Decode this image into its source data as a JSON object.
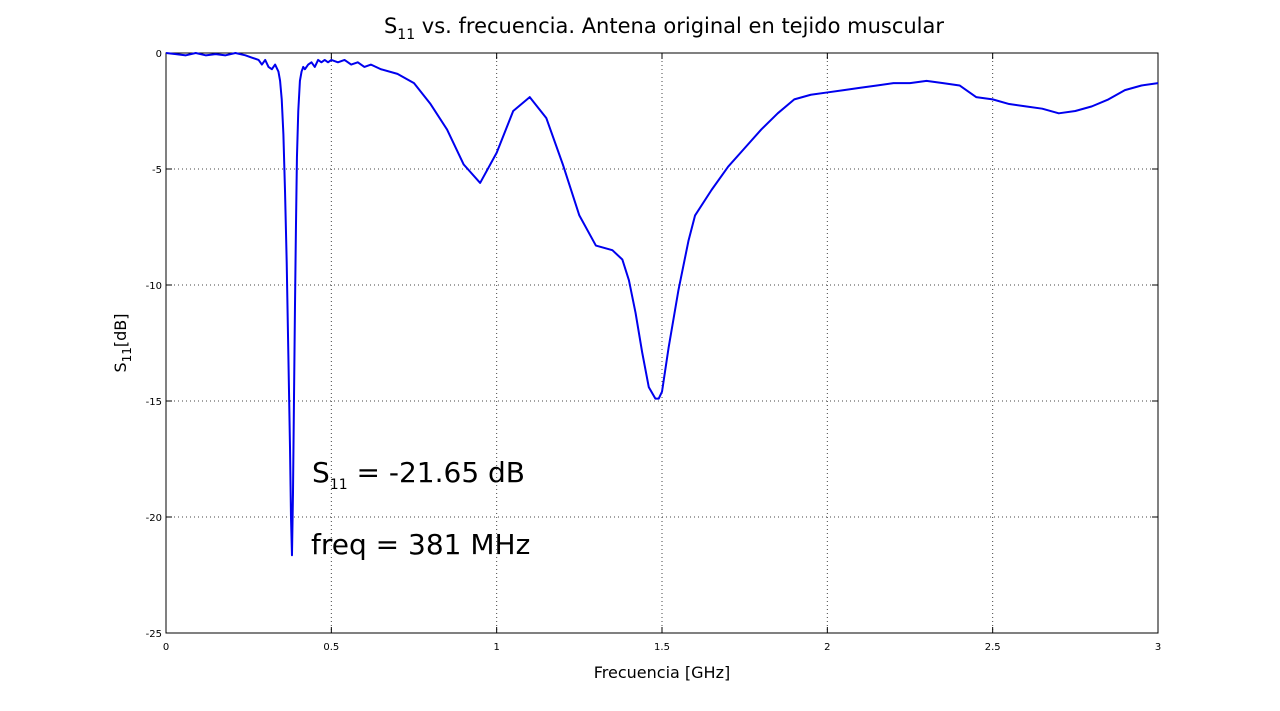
{
  "chart_data": {
    "type": "line",
    "title": {
      "main": "S",
      "subscript": "11",
      "rest": " vs. frecuencia. Antena original en tejido muscular"
    },
    "xlabel": "Frecuencia [GHz]",
    "ylabel": {
      "main": "S",
      "subscript": "11",
      "rest": "[dB]"
    },
    "xlim": [
      0,
      3
    ],
    "ylim": [
      -25,
      0
    ],
    "xticks": [
      0,
      0.5,
      1,
      1.5,
      2,
      2.5,
      3
    ],
    "xtick_labels": [
      "0",
      "0.5",
      "1",
      "1.5",
      "2",
      "2.5",
      "3"
    ],
    "yticks": [
      0,
      -5,
      -10,
      -15,
      -20,
      -25
    ],
    "ytick_labels": [
      "0",
      "-5",
      "-10",
      "-15",
      "-20",
      "-25"
    ],
    "grid": true,
    "line_color": "#0000ee",
    "series": [
      {
        "x": [
          0,
          0.03,
          0.06,
          0.09,
          0.12,
          0.15,
          0.18,
          0.21,
          0.24,
          0.26,
          0.28,
          0.29,
          0.3,
          0.31,
          0.32,
          0.33,
          0.34,
          0.345,
          0.35,
          0.355,
          0.36,
          0.365,
          0.37,
          0.375,
          0.378,
          0.381,
          0.384,
          0.387,
          0.39,
          0.393,
          0.396,
          0.4,
          0.405,
          0.41,
          0.415,
          0.42,
          0.43,
          0.44,
          0.45,
          0.46,
          0.47,
          0.48,
          0.49,
          0.5,
          0.52,
          0.54,
          0.56,
          0.58,
          0.6,
          0.62,
          0.65,
          0.7,
          0.75,
          0.8,
          0.85,
          0.9,
          0.95,
          1.0,
          1.05,
          1.1,
          1.15,
          1.2,
          1.25,
          1.3,
          1.35,
          1.38,
          1.4,
          1.42,
          1.44,
          1.46,
          1.48,
          1.49,
          1.5,
          1.52,
          1.55,
          1.58,
          1.6,
          1.65,
          1.7,
          1.75,
          1.8,
          1.85,
          1.9,
          1.95,
          2.0,
          2.05,
          2.1,
          2.15,
          2.2,
          2.25,
          2.3,
          2.35,
          2.4,
          2.45,
          2.5,
          2.55,
          2.6,
          2.65,
          2.7,
          2.75,
          2.8,
          2.85,
          2.9,
          2.95,
          3.0
        ],
        "y": [
          0,
          -0.05,
          -0.1,
          0,
          -0.1,
          -0.05,
          -0.1,
          0,
          -0.1,
          -0.2,
          -0.3,
          -0.5,
          -0.3,
          -0.6,
          -0.7,
          -0.5,
          -0.8,
          -1.2,
          -2.0,
          -3.5,
          -6.0,
          -9.0,
          -13.0,
          -17.0,
          -20.0,
          -21.65,
          -19.0,
          -15.0,
          -11.0,
          -7.5,
          -4.5,
          -2.5,
          -1.2,
          -0.8,
          -0.6,
          -0.7,
          -0.5,
          -0.4,
          -0.6,
          -0.3,
          -0.4,
          -0.3,
          -0.4,
          -0.3,
          -0.4,
          -0.3,
          -0.5,
          -0.4,
          -0.6,
          -0.5,
          -0.7,
          -0.9,
          -1.3,
          -2.2,
          -3.3,
          -4.8,
          -5.6,
          -4.3,
          -2.5,
          -1.9,
          -2.8,
          -4.8,
          -7.0,
          -8.3,
          -8.5,
          -8.9,
          -9.8,
          -11.2,
          -12.9,
          -14.4,
          -14.9,
          -14.9,
          -14.6,
          -12.7,
          -10.2,
          -8.1,
          -7.0,
          -5.9,
          -4.9,
          -4.1,
          -3.3,
          -2.6,
          -2.0,
          -1.8,
          -1.7,
          -1.6,
          -1.5,
          -1.4,
          -1.3,
          -1.3,
          -1.2,
          -1.3,
          -1.4,
          -1.9,
          -2.0,
          -2.2,
          -2.3,
          -2.4,
          -2.6,
          -2.5,
          -2.3,
          -2.0,
          -1.6,
          -1.4,
          -1.3
        ]
      }
    ],
    "annotations": [
      {
        "main": "S",
        "subscript": "11",
        "rest": " = -21.65 dB"
      },
      {
        "text": "freq = 381 MHz"
      }
    ]
  }
}
